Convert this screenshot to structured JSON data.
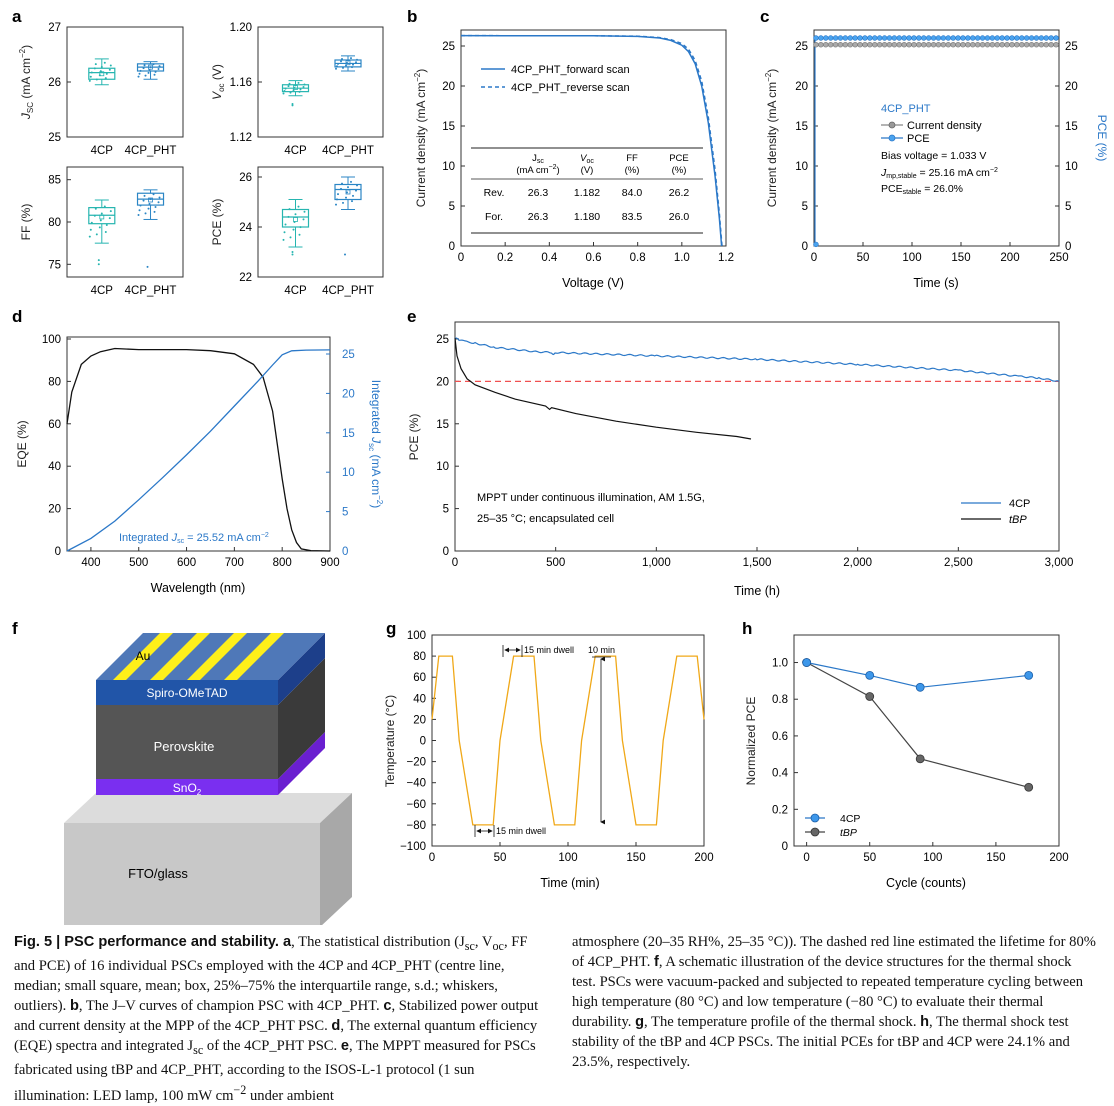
{
  "panels": {
    "a": {
      "letter": "a",
      "categories": [
        "4CP",
        "4CP_PHT"
      ],
      "colors": {
        "4CP": "#26b5b0",
        "4CP_PHT": "#2b86c5"
      },
      "subplots": [
        {
          "ylabel_main": "J",
          "ylabel_sub": "SC",
          "ylabel_unit": " (mA cm",
          "ylabel_sup": "−2",
          "ylabel_end": ")",
          "yticks": [
            "25",
            "26",
            "27"
          ],
          "ylim": [
            25,
            27
          ],
          "boxes": [
            {
              "min": 25.95,
              "q1": 26.05,
              "median": 26.17,
              "mean": 26.15,
              "q3": 26.25,
              "max": 26.42
            },
            {
              "min": 26.05,
              "q1": 26.2,
              "median": 26.27,
              "mean": 26.27,
              "q3": 26.33,
              "max": 26.37
            }
          ]
        },
        {
          "ylabel_main": "V",
          "ylabel_sub": "oc",
          "ylabel_unit": " (V)",
          "ylabel_sup": "",
          "ylabel_end": "",
          "yticks": [
            "1.12",
            "1.16",
            "1.20"
          ],
          "ylim": [
            1.12,
            1.2
          ],
          "boxes": [
            {
              "min": 1.15,
              "q1": 1.153,
              "median": 1.1555,
              "mean": 1.156,
              "q3": 1.158,
              "max": 1.161,
              "outliers": [
                1.143,
                1.144
              ]
            },
            {
              "min": 1.168,
              "q1": 1.171,
              "median": 1.1735,
              "mean": 1.174,
              "q3": 1.176,
              "max": 1.179
            }
          ]
        },
        {
          "ylabel_main": "FF (%)",
          "ylabel_sub": "",
          "ylabel_unit": "",
          "ylabel_sup": "",
          "ylabel_end": "",
          "yticks": [
            "75",
            "80",
            "85"
          ],
          "ylim": [
            73.5,
            86.5
          ],
          "boxes": [
            {
              "min": 77.5,
              "q1": 79.8,
              "median": 80.8,
              "mean": 80.6,
              "q3": 81.7,
              "max": 82.6,
              "outliers": [
                75,
                75.5
              ]
            },
            {
              "min": 80.3,
              "q1": 82.0,
              "median": 82.7,
              "mean": 82.6,
              "q3": 83.4,
              "max": 83.8,
              "outliers": [
                74.7
              ]
            }
          ]
        },
        {
          "ylabel_main": "PCE (%)",
          "ylabel_sub": "",
          "ylabel_unit": "",
          "ylabel_sup": "",
          "ylabel_end": "",
          "yticks": [
            "22",
            "24",
            "26"
          ],
          "ylim": [
            22,
            26.4
          ],
          "boxes": [
            {
              "min": 23.2,
              "q1": 24.0,
              "median": 24.4,
              "mean": 24.3,
              "q3": 24.7,
              "max": 25.1,
              "outliers": [
                22.9,
                23.0
              ]
            },
            {
              "min": 24.7,
              "q1": 25.1,
              "median": 25.5,
              "mean": 25.4,
              "q3": 25.7,
              "max": 26.0,
              "outliers": [
                22.9
              ]
            }
          ]
        }
      ]
    },
    "b": {
      "letter": "b",
      "xlabel": "Voltage (V)",
      "ylabel": "Current density (mA cm",
      "ylabel_sup": "−2",
      "xticks": [
        "0",
        "0.2",
        "0.4",
        "0.6",
        "0.8",
        "1.0",
        "1.2"
      ],
      "yticks": [
        "0",
        "5",
        "10",
        "15",
        "20",
        "25"
      ],
      "legend": [
        "4CP_PHT_forward scan",
        "4CP_PHT_reverse scan"
      ],
      "table": {
        "headers": [
          [
            "",
            "",
            ""
          ],
          [
            "J",
            "sc",
            "(mA cm"
          ],
          [
            "V",
            "oc",
            "(V)"
          ],
          [
            "FF",
            "",
            "(%)"
          ],
          [
            "PCE",
            "",
            "(%)"
          ]
        ],
        "header_sup": "−2",
        "rows": [
          [
            "Rev.",
            "26.3",
            "1.182",
            "84.0",
            "26.2"
          ],
          [
            "For.",
            "26.3",
            "1.180",
            "83.5",
            "26.0"
          ]
        ]
      }
    },
    "c": {
      "letter": "c",
      "xlabel": "Time (s)",
      "ylabel": "Current density (mA cm",
      "ylabel_sup": "−2",
      "ylabel_right": "PCE (%)",
      "xticks": [
        "0",
        "50",
        "100",
        "150",
        "200",
        "250"
      ],
      "yticks": [
        "0",
        "5",
        "10",
        "15",
        "20",
        "25"
      ],
      "title": "4CP_PHT",
      "legend": [
        "Current density",
        "PCE"
      ],
      "bias": "Bias voltage = 1.033 V",
      "jmp_main": "J",
      "jmp_sub": "mp,stable",
      "jmp_val": " = 25.16 mA cm",
      "jmp_sup": "−2",
      "pce_main": "PCE",
      "pce_sub": "stable",
      "pce_val": " = 26.0%"
    },
    "d": {
      "letter": "d",
      "xlabel": "Wavelength (nm)",
      "ylabel": "EQE (%)",
      "ylabel_right_a": "Integrated ",
      "ylabel_right_j": "J",
      "ylabel_right_sub": "sc",
      "ylabel_right_b": " (mA cm",
      "ylabel_right_sup": "−2",
      "ylabel_right_end": ")",
      "xticks": [
        "400",
        "500",
        "600",
        "700",
        "800",
        "900"
      ],
      "yticks": [
        "0",
        "20",
        "40",
        "60",
        "80",
        "100"
      ],
      "yticks_right": [
        "0",
        "5",
        "10",
        "15",
        "20",
        "25"
      ],
      "annotation_a": "Integrated ",
      "annotation_j": "J",
      "annotation_sub": "sc",
      "annotation_b": " = 25.52 mA cm",
      "annotation_sup": "−2"
    },
    "e": {
      "letter": "e",
      "xlabel": "Time (h)",
      "ylabel": "PCE (%)",
      "xticks": [
        "0",
        "500",
        "1,000",
        "1,500",
        "2,000",
        "2,500",
        "3,000"
      ],
      "yticks": [
        "0",
        "5",
        "10",
        "15",
        "20",
        "25"
      ],
      "note_line1": "MPPT under continuous illumination, AM 1.5G,",
      "note_line2": "25–35 °C; encapsulated cell",
      "legend": [
        "4CP",
        "tBP"
      ]
    },
    "f": {
      "letter": "f",
      "layers": [
        "Au",
        "Spiro-OMeTAD",
        "Perovskite",
        "SnO",
        "FTO/glass"
      ],
      "sno_sub": "2"
    },
    "g": {
      "letter": "g",
      "xlabel": "Time (min)",
      "ylabel": "Temperature (°C)",
      "xticks": [
        "0",
        "50",
        "100",
        "150",
        "200"
      ],
      "yticks": [
        "100",
        "80",
        "60",
        "40",
        "20",
        "0",
        "−20",
        "−40",
        "−60",
        "−80",
        "−100"
      ],
      "dwell_top": "15 min dwell",
      "dwell_bottom": "15 min dwell",
      "ramp": "10 min"
    },
    "h": {
      "letter": "h",
      "xlabel": "Cycle (counts)",
      "ylabel": "Normalized PCE",
      "xticks": [
        "0",
        "50",
        "100",
        "150",
        "200"
      ],
      "yticks": [
        "0",
        "0.2",
        "0.4",
        "0.6",
        "0.8",
        "1.0"
      ],
      "legend": [
        "4CP",
        "tBP"
      ]
    }
  },
  "chart_data": [
    {
      "type": "box",
      "panel": "a",
      "ylabel": "J_SC (mA cm−2)",
      "categories": [
        "4CP",
        "4CP_PHT"
      ],
      "ylim": [
        25,
        27
      ]
    },
    {
      "type": "line",
      "panel": "b",
      "xlabel": "Voltage (V)",
      "ylabel": "Current density (mA cm−2)",
      "xlim": [
        0,
        1.2
      ],
      "ylim": [
        0,
        27
      ],
      "series": [
        {
          "name": "4CP_PHT_forward scan",
          "x": [
            0,
            0.2,
            0.4,
            0.6,
            0.8,
            0.9,
            0.95,
            1.0,
            1.03,
            1.06,
            1.09,
            1.12,
            1.15,
            1.17,
            1.18
          ],
          "y": [
            26.3,
            26.29,
            26.28,
            26.27,
            26.2,
            26.0,
            25.7,
            25.1,
            24.3,
            22.8,
            20.0,
            15.4,
            8.8,
            3.4,
            0
          ]
        },
        {
          "name": "4CP_PHT_reverse scan",
          "x": [
            0,
            0.2,
            0.4,
            0.6,
            0.8,
            0.9,
            0.95,
            1.0,
            1.03,
            1.06,
            1.09,
            1.12,
            1.15,
            1.17,
            1.182
          ],
          "y": [
            26.3,
            26.29,
            26.28,
            26.27,
            26.22,
            26.05,
            25.8,
            25.3,
            24.6,
            23.2,
            20.6,
            16.1,
            9.6,
            4.0,
            0
          ]
        }
      ]
    },
    {
      "type": "line",
      "panel": "c",
      "xlabel": "Time (s)",
      "xlim": [
        0,
        250
      ],
      "ylim": [
        0,
        27
      ],
      "series": [
        {
          "name": "Current density",
          "y_steady": 25.16
        },
        {
          "name": "PCE",
          "y_steady": 26.0
        }
      ]
    },
    {
      "type": "line",
      "panel": "d",
      "xlabel": "Wavelength (nm)",
      "ylabel": "EQE (%)",
      "xlim": [
        350,
        900
      ],
      "ylim": [
        0,
        100
      ],
      "series": [
        {
          "name": "EQE",
          "x": [
            350,
            360,
            380,
            400,
            420,
            450,
            500,
            550,
            600,
            650,
            700,
            740,
            760,
            780,
            790,
            800,
            810,
            820,
            830,
            840,
            860,
            900
          ],
          "y": [
            60,
            75,
            88,
            92,
            94,
            95.5,
            95,
            95,
            95,
            94.5,
            93,
            88,
            82,
            66,
            50,
            34,
            20,
            10,
            4,
            1,
            0.2,
            0
          ]
        },
        {
          "name": "Integrated Jsc",
          "x": [
            350,
            400,
            450,
            500,
            550,
            600,
            650,
            700,
            750,
            780,
            800,
            820,
            850,
            900
          ],
          "y": [
            0,
            1.6,
            3.8,
            6.5,
            9.3,
            12.2,
            15.2,
            18.4,
            21.6,
            23.6,
            24.9,
            25.4,
            25.5,
            25.52
          ]
        }
      ]
    },
    {
      "type": "line",
      "panel": "e",
      "xlabel": "Time (h)",
      "ylabel": "PCE (%)",
      "xlim": [
        0,
        3000
      ],
      "ylim": [
        0,
        27
      ],
      "series": [
        {
          "name": "4CP",
          "x": [
            0,
            20,
            50,
            100,
            200,
            400,
            480,
            490,
            500,
            1000,
            1500,
            2000,
            2500,
            2800,
            2900,
            3000
          ],
          "y": [
            25.1,
            24.9,
            24.7,
            24.5,
            24.0,
            23.5,
            23.4,
            23.1,
            23.4,
            23.0,
            22.6,
            22.0,
            21.3,
            20.6,
            20.4,
            20.0
          ]
        },
        {
          "name": "tBP",
          "x": [
            0,
            10,
            30,
            60,
            100,
            200,
            300,
            450,
            470,
            480,
            600,
            800,
            1000,
            1200,
            1400,
            1470
          ],
          "y": [
            25.1,
            23.0,
            21.5,
            20.3,
            19.6,
            18.7,
            17.9,
            17.1,
            16.7,
            16.9,
            16.2,
            15.3,
            14.6,
            14.0,
            13.5,
            13.2
          ]
        },
        {
          "name": "80% of 4CP_PHT",
          "y_const": 20
        }
      ]
    },
    {
      "type": "line",
      "panel": "g",
      "xlabel": "Time (min)",
      "ylabel": "Temperature (°C)",
      "xlim": [
        0,
        200
      ],
      "ylim": [
        -100,
        100
      ],
      "series": [
        {
          "name": "Temperature",
          "x": [
            0,
            5,
            15,
            20,
            30,
            45,
            50,
            60,
            75,
            80,
            90,
            105,
            110,
            120,
            135,
            140,
            150,
            165,
            170,
            180,
            195,
            200
          ],
          "y": [
            20,
            80,
            80,
            0,
            -80,
            -80,
            0,
            80,
            80,
            0,
            -80,
            -80,
            0,
            80,
            80,
            0,
            -80,
            -80,
            0,
            80,
            80,
            20
          ]
        }
      ]
    },
    {
      "type": "line",
      "panel": "h",
      "xlabel": "Cycle (counts)",
      "ylabel": "Normalized PCE",
      "xlim": [
        -10,
        200
      ],
      "ylim": [
        0,
        1.15
      ],
      "series": [
        {
          "name": "4CP",
          "x": [
            0,
            50,
            90,
            176
          ],
          "y": [
            1.0,
            0.93,
            0.865,
            0.93
          ]
        },
        {
          "name": "tBP",
          "x": [
            0,
            50,
            90,
            176
          ],
          "y": [
            1.0,
            0.815,
            0.475,
            0.32
          ]
        }
      ]
    }
  ],
  "caption": {
    "c1_lead": "Fig. 5 | PSC performance and stability. a",
    "c1_a": ", The statistical distribution (J",
    "c1_a_sub1": "sc",
    "c1_a2": ", V",
    "c1_a_sub2": "oc",
    "c1_a3": ", FF and PCE) of 16 individual PSCs employed with the 4CP and 4CP_PHT (centre line, median; small square, mean; box, 25%–75% the interquartile range, s.d.; whiskers, outliers). ",
    "c1_b_lead": "b",
    "c1_b": ", The J–V curves of champion PSC with 4CP_PHT. ",
    "c1_c_lead": "c",
    "c1_c": ", Stabilized power output and current density at the MPP of the 4CP_PHT PSC. ",
    "c1_d_lead": "d",
    "c1_d": ", The external quantum efficiency (EQE) spectra and integrated J",
    "c1_d_sub": "sc",
    "c1_d2": " of the 4CP_PHT PSC. ",
    "c1_e_lead": "e",
    "c1_e": ", The MPPT measured for PSCs fabricated using tBP and 4CP_PHT, according to the ISOS-L-1 protocol (1 sun illumination: LED lamp, 100 mW cm",
    "c1_e_sup": "−2",
    "c1_e2": " under ambient",
    "c2_a": "atmosphere (20–35 RH%, 25–35 °C)). The dashed red line estimated the lifetime for 80% of 4CP_PHT. ",
    "c2_f_lead": "f",
    "c2_f": ", A schematic illustration of the device structures for the thermal shock test. PSCs were vacuum-packed and subjected to repeated temperature cycling between high temperature (80 °C) and low temperature (−80 °C) to evaluate their thermal durability. ",
    "c2_g_lead": "g",
    "c2_g": ", The temperature profile of the thermal shock. ",
    "c2_h_lead": "h",
    "c2_h": ", The thermal shock test stability of the tBP and 4CP PSCs. The initial PCEs for tBP and 4CP were 24.1% and 23.5%, respectively."
  }
}
